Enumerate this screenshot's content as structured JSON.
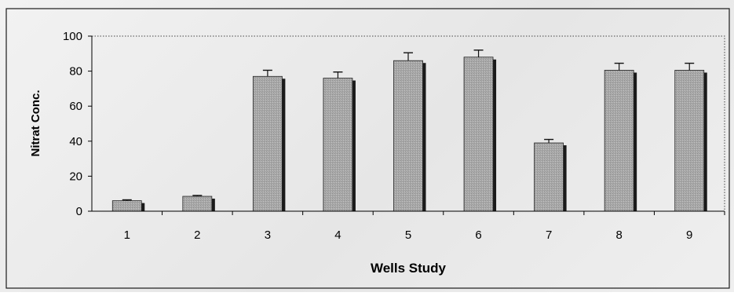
{
  "chart_data": {
    "type": "bar",
    "title": "",
    "xlabel": "Wells Study",
    "ylabel": "Nitrat Conc.",
    "categories": [
      "1",
      "2",
      "3",
      "4",
      "5",
      "6",
      "7",
      "8",
      "9"
    ],
    "values": [
      6,
      8.5,
      77,
      76,
      86,
      88,
      39,
      80.5,
      80.5
    ],
    "errors": [
      0.5,
      0.5,
      3.5,
      3.5,
      4.5,
      4,
      2,
      4,
      4
    ],
    "ylim": [
      0,
      100
    ],
    "yticks": [
      0,
      20,
      40,
      60,
      80,
      100
    ],
    "grid": false,
    "legend": "none",
    "colors": {
      "bar_fill": "#a9a9a9",
      "bar_shadow": "#1a1a1a",
      "error_bar": "#111111",
      "axis": "#000000"
    }
  }
}
